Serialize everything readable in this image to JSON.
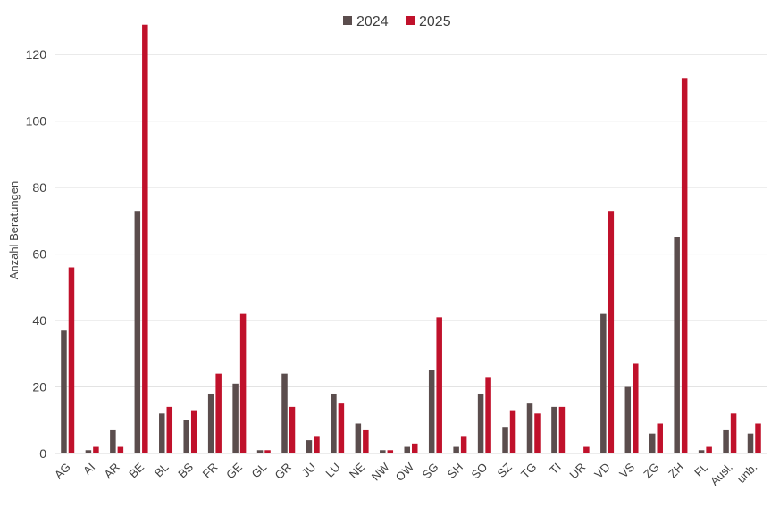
{
  "chart_data": {
    "type": "bar",
    "title": "",
    "xlabel": "",
    "ylabel": "Anzahl Beratungen",
    "ylim": [
      0,
      130
    ],
    "yticks": [
      0,
      20,
      40,
      60,
      80,
      100,
      120
    ],
    "grid": true,
    "legend_position": "top",
    "categories": [
      "AG",
      "AI",
      "AR",
      "BE",
      "BL",
      "BS",
      "FR",
      "GE",
      "GL",
      "GR",
      "JU",
      "LU",
      "NE",
      "NW",
      "OW",
      "SG",
      "SH",
      "SO",
      "SZ",
      "TG",
      "TI",
      "UR",
      "VD",
      "VS",
      "ZG",
      "ZH",
      "FL",
      "Ausl.",
      "unb."
    ],
    "series": [
      {
        "name": "2024",
        "color": "#5b4d4d",
        "values": [
          37,
          1,
          7,
          73,
          12,
          10,
          18,
          21,
          1,
          24,
          4,
          18,
          9,
          1,
          2,
          25,
          2,
          18,
          8,
          15,
          14,
          0,
          42,
          20,
          6,
          65,
          1,
          7,
          6
        ]
      },
      {
        "name": "2025",
        "color": "#c0112b",
        "values": [
          56,
          2,
          2,
          129,
          14,
          13,
          24,
          42,
          1,
          14,
          5,
          15,
          7,
          1,
          3,
          41,
          5,
          23,
          13,
          12,
          14,
          2,
          73,
          27,
          9,
          113,
          2,
          12,
          9
        ]
      }
    ]
  }
}
